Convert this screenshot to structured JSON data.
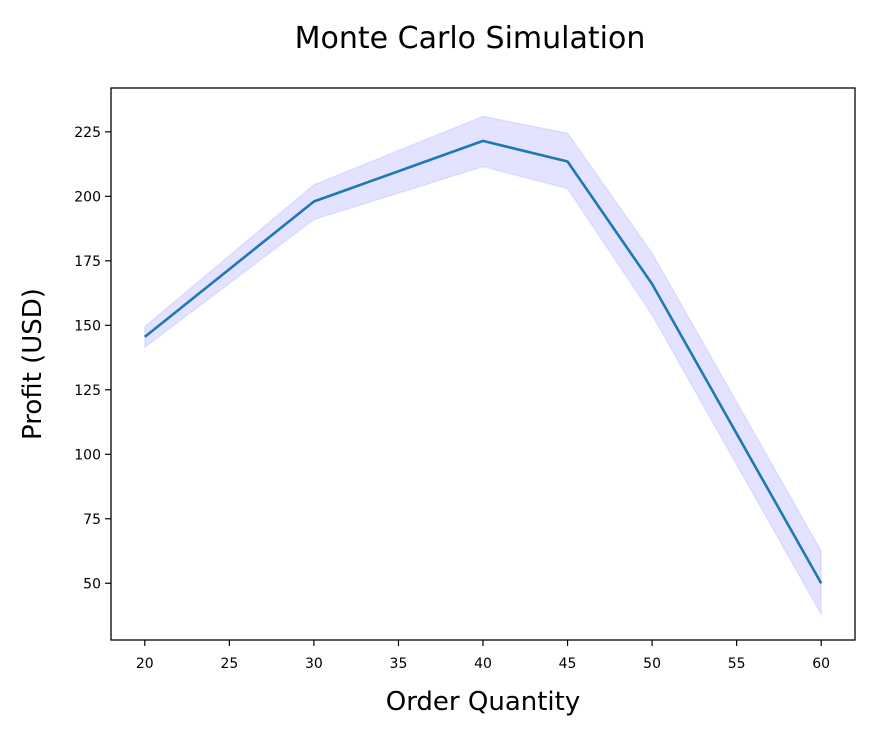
{
  "chart_data": {
    "type": "line",
    "title": "Monte Carlo Simulation",
    "xlabel": "Order Quantity",
    "ylabel": "Profit (USD)",
    "xlim": [
      18,
      62
    ],
    "ylim": [
      28,
      242
    ],
    "xticks": [
      20,
      25,
      30,
      35,
      40,
      45,
      50,
      55,
      60
    ],
    "yticks": [
      50,
      75,
      100,
      125,
      150,
      175,
      200,
      225
    ],
    "grid": false,
    "legend": "none",
    "series": [
      {
        "x": [
          20,
          30,
          40,
          45,
          50,
          60
        ],
        "values": [
          145.5,
          198,
          221.5,
          213.5,
          166,
          50
        ],
        "lower": [
          141.5,
          191,
          211.5,
          203,
          154,
          38
        ],
        "upper": [
          149.5,
          204.5,
          231,
          224.5,
          178,
          62.5
        ],
        "color": "#1f77b4",
        "band_color": "#0000ff",
        "band_opacity": 0.11
      }
    ]
  }
}
